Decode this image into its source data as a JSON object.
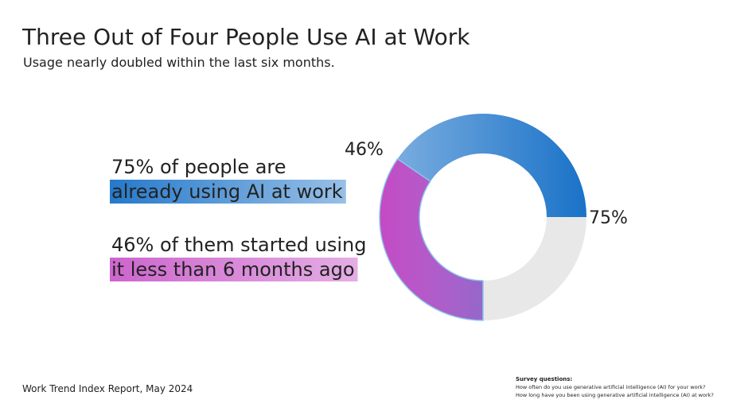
{
  "chart_data": {
    "type": "donut",
    "title": "Three Out of Four People Use AI at Work",
    "subtitle": "Usage nearly doubled within the last six months.",
    "values": [
      75,
      46
    ],
    "value_labels": [
      "75%",
      "46%"
    ],
    "colors": [
      "#1a72c8",
      "#c44ac4"
    ],
    "remainder_color": "#e8e8e8",
    "callouts": [
      {
        "lines": [
          "75% of people are",
          "already using AI at work"
        ]
      },
      {
        "lines": [
          "46% of them started using",
          "it less than 6 months ago"
        ]
      }
    ],
    "source": "Work Trend Index Report, May 2024",
    "survey": {
      "heading": "Survey questions:",
      "lines": [
        "How often do you use generative artificial intelligence (AI) for your work?",
        "How long have you been using generative artificial intelligence (AI) at work?"
      ]
    }
  }
}
